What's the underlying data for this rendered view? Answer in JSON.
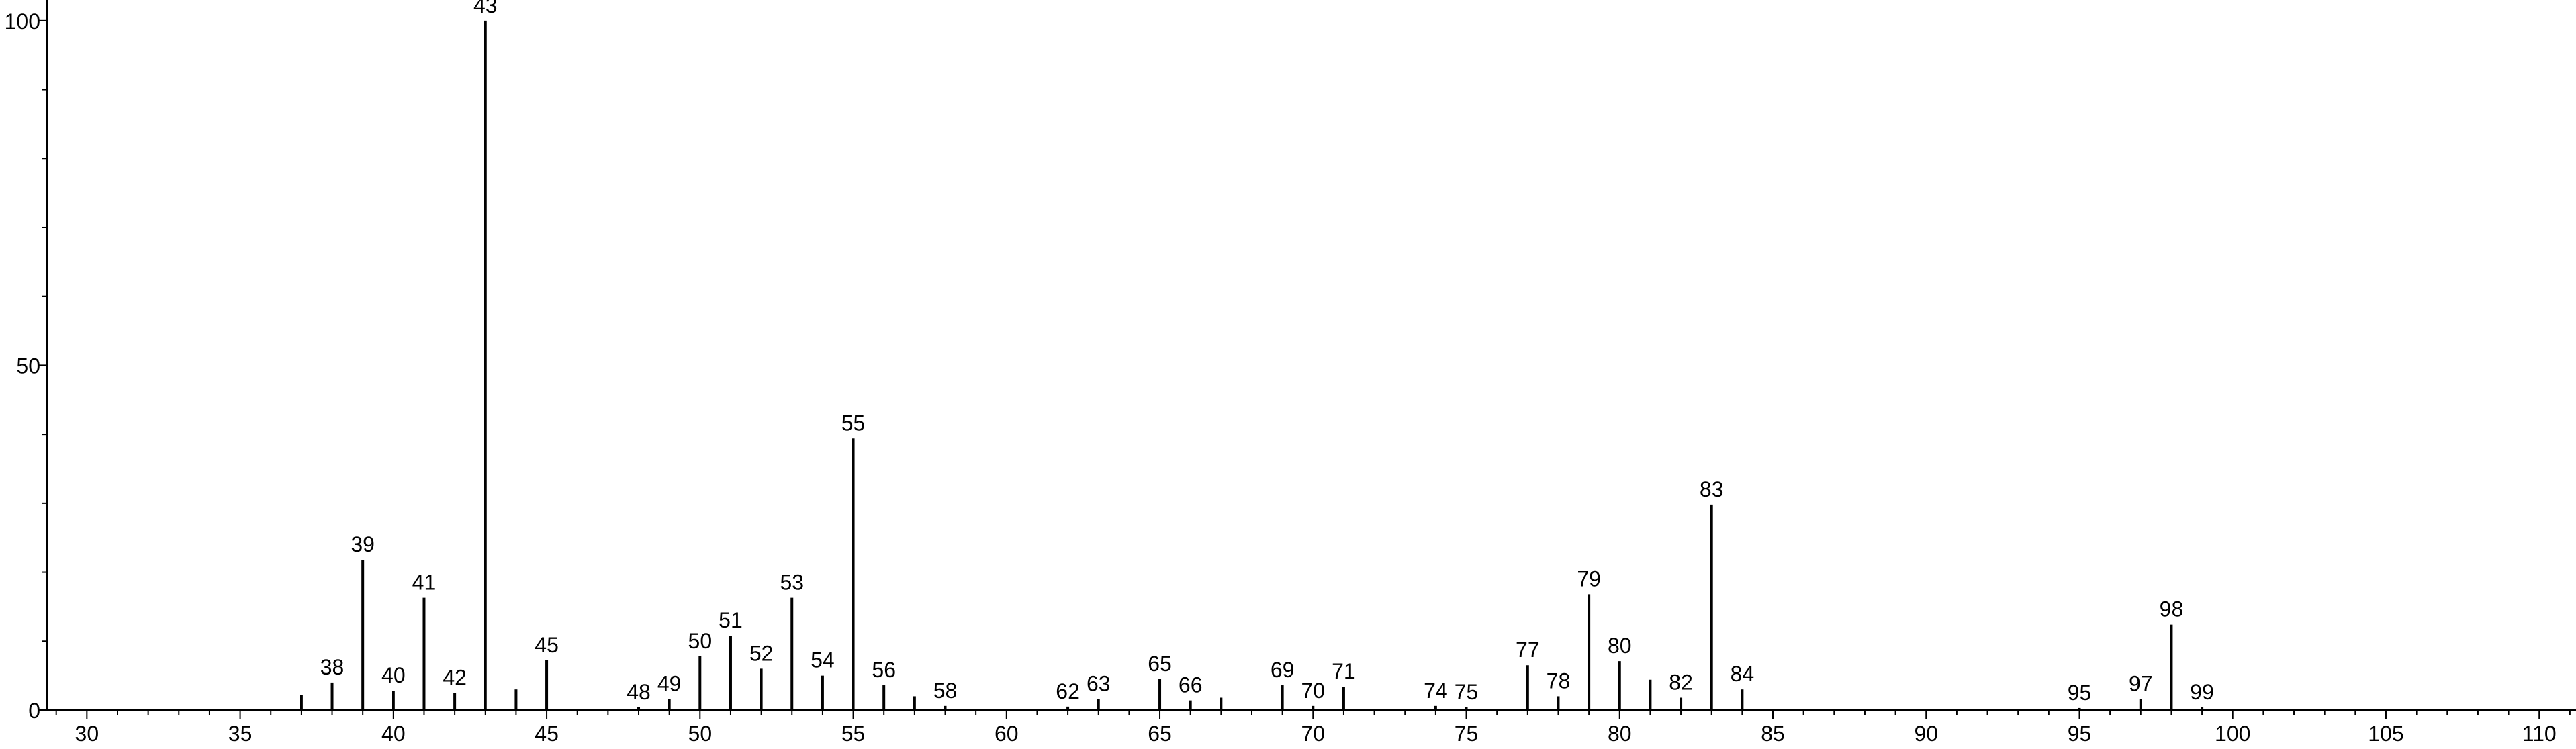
{
  "chart_data": {
    "type": "bar",
    "title": "",
    "xlabel": "",
    "ylabel": "",
    "xlim": [
      28.7,
      111.2
    ],
    "ylim": [
      0,
      103
    ],
    "x_ticks": [
      30,
      35,
      40,
      45,
      50,
      55,
      60,
      65,
      70,
      75,
      80,
      85,
      90,
      95,
      100,
      105,
      110
    ],
    "y_ticks": [
      0,
      50,
      100
    ],
    "grid": false,
    "legend": "none",
    "color": "#000000",
    "peaks": [
      {
        "x": 37,
        "y": 2.2,
        "label": ""
      },
      {
        "x": 38,
        "y": 4.0,
        "label": "38"
      },
      {
        "x": 39,
        "y": 21.8,
        "label": "39"
      },
      {
        "x": 40,
        "y": 2.8,
        "label": "40"
      },
      {
        "x": 41,
        "y": 16.3,
        "label": "41"
      },
      {
        "x": 42,
        "y": 2.5,
        "label": "42"
      },
      {
        "x": 43,
        "y": 100,
        "label": "43"
      },
      {
        "x": 44,
        "y": 3.0,
        "label": ""
      },
      {
        "x": 45,
        "y": 7.2,
        "label": "45"
      },
      {
        "x": 48,
        "y": 0.4,
        "label": "48"
      },
      {
        "x": 49,
        "y": 1.6,
        "label": "49"
      },
      {
        "x": 50,
        "y": 7.8,
        "label": "50"
      },
      {
        "x": 51,
        "y": 10.8,
        "label": "51"
      },
      {
        "x": 52,
        "y": 6.0,
        "label": "52"
      },
      {
        "x": 53,
        "y": 16.3,
        "label": "53"
      },
      {
        "x": 54,
        "y": 5.0,
        "label": "54"
      },
      {
        "x": 55,
        "y": 39.4,
        "label": "55"
      },
      {
        "x": 56,
        "y": 3.6,
        "label": "56"
      },
      {
        "x": 57,
        "y": 2.0,
        "label": ""
      },
      {
        "x": 58,
        "y": 0.6,
        "label": "58"
      },
      {
        "x": 62,
        "y": 0.5,
        "label": "62"
      },
      {
        "x": 63,
        "y": 1.6,
        "label": "63"
      },
      {
        "x": 65,
        "y": 4.5,
        "label": "65"
      },
      {
        "x": 66,
        "y": 1.4,
        "label": "66"
      },
      {
        "x": 67,
        "y": 1.8,
        "label": ""
      },
      {
        "x": 69,
        "y": 3.6,
        "label": "69"
      },
      {
        "x": 70,
        "y": 0.6,
        "label": "70"
      },
      {
        "x": 71,
        "y": 3.4,
        "label": "71"
      },
      {
        "x": 74,
        "y": 0.6,
        "label": "74"
      },
      {
        "x": 75,
        "y": 0.4,
        "label": "75"
      },
      {
        "x": 77,
        "y": 6.5,
        "label": "77"
      },
      {
        "x": 78,
        "y": 2.0,
        "label": "78"
      },
      {
        "x": 79,
        "y": 16.8,
        "label": "79"
      },
      {
        "x": 80,
        "y": 7.1,
        "label": "80"
      },
      {
        "x": 81,
        "y": 4.4,
        "label": ""
      },
      {
        "x": 82,
        "y": 1.8,
        "label": "82"
      },
      {
        "x": 83,
        "y": 29.8,
        "label": "83"
      },
      {
        "x": 84,
        "y": 3.0,
        "label": "84"
      },
      {
        "x": 95,
        "y": 0.3,
        "label": "95"
      },
      {
        "x": 97,
        "y": 1.6,
        "label": "97"
      },
      {
        "x": 98,
        "y": 12.4,
        "label": "98"
      },
      {
        "x": 99,
        "y": 0.4,
        "label": "99"
      }
    ]
  }
}
